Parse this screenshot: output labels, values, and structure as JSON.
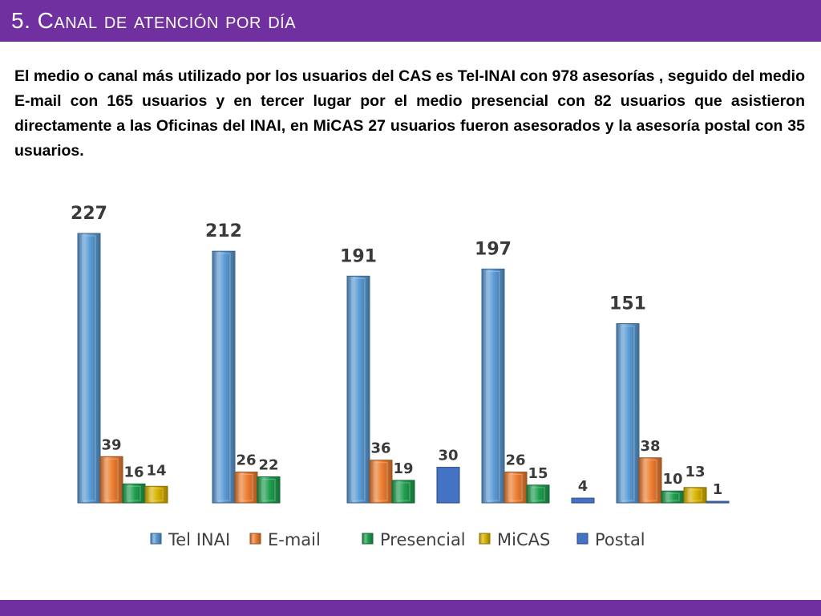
{
  "slide": {
    "title": "5. Canal de atención por día",
    "summary": "El medio o canal más utilizado por los usuarios del CAS es Tel-INAI con 978 asesorías , seguido del medio E-mail con 165 usuarios y en tercer lugar por el medio presencial con 82 usuarios que  asistieron directamente a las Oficinas del INAI, en MiCAS 27 usuarios fueron asesorados y la asesoría postal con 35 usuarios."
  },
  "colors": {
    "accent": "#7030a0",
    "tel_inai": "#5b9bd5",
    "email": "#ed7d31",
    "presencial": "#1f9e4f",
    "micas": "#d9b300",
    "postal": "#4472c4"
  },
  "chart_data": {
    "type": "bar",
    "categories": [
      "",
      "",
      "",
      "",
      ""
    ],
    "series": [
      {
        "name": "Tel INAI",
        "color": "#5b9bd5",
        "values": [
          227,
          212,
          191,
          197,
          151
        ],
        "labels": [
          "227",
          "212",
          "191",
          "197",
          "151"
        ]
      },
      {
        "name": "E-mail",
        "color": "#ed7d31",
        "values": [
          39,
          26,
          36,
          26,
          38
        ],
        "labels": [
          "39",
          "26",
          "36",
          "26",
          "38"
        ]
      },
      {
        "name": "Presencial",
        "color": "#1f9e4f",
        "values": [
          16,
          22,
          19,
          15,
          10
        ],
        "labels": [
          "16",
          "22",
          "19",
          "15",
          "10"
        ]
      },
      {
        "name": "MiCAS",
        "color": "#d9b300",
        "values": [
          14,
          null,
          null,
          null,
          13
        ],
        "labels": [
          "14",
          "",
          "",
          "",
          "13"
        ]
      },
      {
        "name": "Postal",
        "color": "#4472c4",
        "values": [
          null,
          null,
          30,
          4,
          1
        ],
        "labels": [
          "",
          "",
          "30",
          "4",
          "1"
        ]
      }
    ],
    "ylim": [
      0,
      227
    ],
    "grid": false,
    "legend": "bottom",
    "title": "",
    "xlabel": "",
    "ylabel": ""
  }
}
